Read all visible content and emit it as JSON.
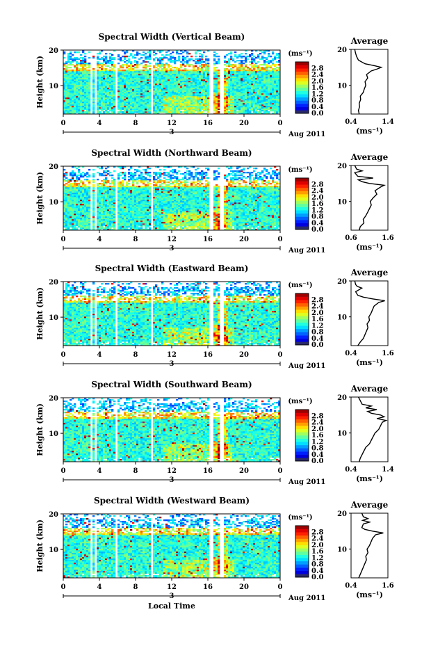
{
  "chart_data": [
    {
      "type": "heatmap",
      "title": "Spectral Width (Vertical Beam)",
      "ylabel": "Height (km)",
      "x_ticks": [
        "0",
        "4",
        "8",
        "12",
        "16",
        "20",
        "0"
      ],
      "date_mid": "3",
      "date_label": "Aug 2011",
      "y_ticks": [
        "20",
        "10"
      ],
      "xlim": [
        0,
        24
      ],
      "ylim": [
        2,
        20
      ],
      "colorbar": {
        "unit": "(ms⁻¹)",
        "ticks": [
          "2.8",
          "2.4",
          "2.0",
          "1.6",
          "1.2",
          "0.8",
          "0.4",
          "0.0"
        ],
        "range": [
          0,
          3.2
        ]
      },
      "average": {
        "title": "Average",
        "xlabel": "(ms⁻¹)",
        "x_ticks": [
          "0.4",
          "1.4"
        ],
        "xlim": [
          0.4,
          1.4
        ],
        "y_ticks": [
          "20",
          "10"
        ],
        "profile": [
          [
            2.0,
            0.62
          ],
          [
            3,
            0.6
          ],
          [
            4,
            0.63
          ],
          [
            5,
            0.62
          ],
          [
            6,
            0.66
          ],
          [
            7,
            0.65
          ],
          [
            8,
            0.73
          ],
          [
            9,
            0.76
          ],
          [
            10,
            0.8
          ],
          [
            11,
            0.78
          ],
          [
            12,
            0.85
          ],
          [
            13,
            0.82
          ],
          [
            14,
            0.95
          ],
          [
            14.5,
            1.1
          ],
          [
            15,
            1.22
          ],
          [
            15.5,
            1.02
          ],
          [
            16,
            0.78
          ],
          [
            17,
            0.6
          ],
          [
            18,
            0.55
          ],
          [
            19,
            0.52
          ],
          [
            20,
            0.5
          ]
        ]
      }
    },
    {
      "type": "heatmap",
      "title": "Spectral Width (Northward Beam)",
      "ylabel": "Height (km)",
      "x_ticks": [
        "0",
        "4",
        "8",
        "12",
        "16",
        "20",
        "0"
      ],
      "date_mid": "3",
      "date_label": "Aug 2011",
      "y_ticks": [
        "20",
        "10"
      ],
      "xlim": [
        0,
        24
      ],
      "ylim": [
        2,
        20
      ],
      "colorbar": {
        "unit": "(ms⁻¹)",
        "ticks": [
          "2.8",
          "2.4",
          "2.0",
          "1.6",
          "1.2",
          "0.8",
          "0.4",
          "0.0"
        ],
        "range": [
          0,
          3.2
        ]
      },
      "average": {
        "title": "Average",
        "xlabel": "(ms⁻¹)",
        "x_ticks": [
          "0.6",
          "1.6"
        ],
        "xlim": [
          0.6,
          1.6
        ],
        "y_ticks": [
          "20",
          "10"
        ],
        "profile": [
          [
            2.0,
            0.82
          ],
          [
            3,
            0.85
          ],
          [
            4,
            0.95
          ],
          [
            5,
            0.93
          ],
          [
            6,
            1.0
          ],
          [
            7,
            1.05
          ],
          [
            8,
            1.1
          ],
          [
            9,
            1.15
          ],
          [
            10,
            1.12
          ],
          [
            11,
            1.2
          ],
          [
            12,
            1.3
          ],
          [
            13,
            1.25
          ],
          [
            14,
            1.4
          ],
          [
            14.5,
            1.5
          ],
          [
            15,
            1.1
          ],
          [
            15.5,
            0.9
          ],
          [
            16,
            0.8
          ],
          [
            16.5,
            1.2
          ],
          [
            17,
            0.78
          ],
          [
            18,
            0.7
          ],
          [
            18.5,
            0.9
          ],
          [
            19,
            0.75
          ],
          [
            20,
            0.7
          ]
        ]
      }
    },
    {
      "type": "heatmap",
      "title": "Spectral Width (Eastward Beam)",
      "ylabel": "Height (km)",
      "x_ticks": [
        "0",
        "4",
        "8",
        "12",
        "16",
        "20",
        "0"
      ],
      "date_mid": "3",
      "date_label": "Aug 2011",
      "y_ticks": [
        "20",
        "10"
      ],
      "xlim": [
        0,
        24
      ],
      "ylim": [
        2,
        20
      ],
      "colorbar": {
        "unit": "(ms⁻¹)",
        "ticks": [
          "2.8",
          "2.4",
          "2.0",
          "1.6",
          "1.2",
          "0.8",
          "0.4",
          "0.0"
        ],
        "range": [
          0,
          3.2
        ]
      },
      "average": {
        "title": "Average",
        "xlabel": "(ms⁻¹)",
        "x_ticks": [
          "0.4",
          "1.6"
        ],
        "xlim": [
          0.4,
          1.6
        ],
        "y_ticks": [
          "20",
          "10"
        ],
        "profile": [
          [
            2.0,
            0.62
          ],
          [
            3,
            0.7
          ],
          [
            4,
            0.8
          ],
          [
            5,
            0.85
          ],
          [
            6,
            0.9
          ],
          [
            7,
            0.95
          ],
          [
            8,
            0.92
          ],
          [
            9,
            1.0
          ],
          [
            10,
            0.98
          ],
          [
            11,
            1.05
          ],
          [
            12,
            1.1
          ],
          [
            13,
            1.15
          ],
          [
            14,
            1.3
          ],
          [
            14.5,
            1.5
          ],
          [
            15,
            1.1
          ],
          [
            15.5,
            0.8
          ],
          [
            16,
            0.62
          ],
          [
            17,
            0.55
          ],
          [
            18,
            0.75
          ],
          [
            18.5,
            0.6
          ],
          [
            19,
            0.55
          ],
          [
            20,
            0.52
          ]
        ]
      }
    },
    {
      "type": "heatmap",
      "title": "Spectral Width (Southward Beam)",
      "ylabel": "Height (km)",
      "x_ticks": [
        "0",
        "4",
        "8",
        "12",
        "16",
        "20",
        "0"
      ],
      "date_mid": "3",
      "date_label": "Aug 2011",
      "y_ticks": [
        "20",
        "10"
      ],
      "xlim": [
        0,
        24
      ],
      "ylim": [
        2,
        20
      ],
      "colorbar": {
        "unit": "(ms⁻¹)",
        "ticks": [
          "2.8",
          "2.4",
          "2.0",
          "1.6",
          "1.2",
          "0.8",
          "0.4",
          "0.0"
        ],
        "range": [
          0,
          3.2
        ]
      },
      "average": {
        "title": "Average",
        "xlabel": "(ms⁻¹)",
        "x_ticks": [
          "0.4",
          "1.4"
        ],
        "xlim": [
          0.4,
          1.4
        ],
        "y_ticks": [
          "20",
          "10"
        ],
        "profile": [
          [
            2.0,
            0.62
          ],
          [
            3,
            0.65
          ],
          [
            4,
            0.7
          ],
          [
            5,
            0.75
          ],
          [
            6,
            0.8
          ],
          [
            7,
            0.9
          ],
          [
            8,
            0.95
          ],
          [
            9,
            1.0
          ],
          [
            10,
            1.05
          ],
          [
            11,
            1.15
          ],
          [
            12,
            1.2
          ],
          [
            13,
            1.25
          ],
          [
            13.5,
            1.35
          ],
          [
            14,
            1.1
          ],
          [
            14.5,
            1.3
          ],
          [
            15,
            1.2
          ],
          [
            15.5,
            0.95
          ],
          [
            16,
            0.85
          ],
          [
            16.5,
            1.1
          ],
          [
            17,
            0.8
          ],
          [
            17.5,
            0.95
          ],
          [
            18,
            0.7
          ],
          [
            19,
            0.65
          ],
          [
            20,
            0.6
          ]
        ]
      }
    },
    {
      "type": "heatmap",
      "title": "Spectral Width (Westward Beam)",
      "ylabel": "Height (km)",
      "xlabel": "Local Time",
      "x_ticks": [
        "0",
        "4",
        "8",
        "12",
        "16",
        "20",
        "0"
      ],
      "date_mid": "3",
      "date_label": "Aug 2011",
      "y_ticks": [
        "20",
        "10"
      ],
      "xlim": [
        0,
        24
      ],
      "ylim": [
        2,
        20
      ],
      "colorbar": {
        "unit": "(ms⁻¹)",
        "ticks": [
          "2.8",
          "2.4",
          "2.0",
          "1.6",
          "1.2",
          "0.8",
          "0.4",
          "0.0"
        ],
        "range": [
          0,
          3.2
        ]
      },
      "average": {
        "title": "Average",
        "xlabel": "(ms⁻¹)",
        "x_ticks": [
          "0.4",
          "1.6"
        ],
        "xlim": [
          0.4,
          1.6
        ],
        "y_ticks": [
          "20",
          "10"
        ],
        "profile": [
          [
            2.0,
            0.65
          ],
          [
            3,
            0.7
          ],
          [
            4,
            0.75
          ],
          [
            5,
            0.8
          ],
          [
            6,
            0.85
          ],
          [
            7,
            0.9
          ],
          [
            8,
            0.88
          ],
          [
            9,
            0.95
          ],
          [
            10,
            0.92
          ],
          [
            11,
            1.0
          ],
          [
            12,
            1.05
          ],
          [
            13,
            1.1
          ],
          [
            14,
            1.2
          ],
          [
            14.5,
            1.45
          ],
          [
            15,
            1.1
          ],
          [
            15.5,
            0.85
          ],
          [
            16,
            0.75
          ],
          [
            17,
            0.8
          ],
          [
            17.5,
            1.0
          ],
          [
            18,
            0.78
          ],
          [
            18.5,
            0.95
          ],
          [
            19,
            0.8
          ],
          [
            20,
            0.75
          ]
        ]
      }
    }
  ]
}
